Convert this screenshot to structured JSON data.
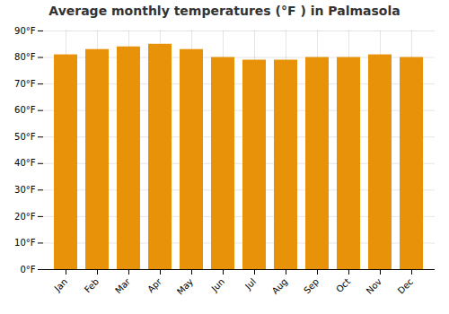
{
  "chart_data": {
    "type": "bar",
    "title": "Average monthly temperatures (°F ) in Palmasola",
    "categories": [
      "Jan",
      "Feb",
      "Mar",
      "Apr",
      "May",
      "Jun",
      "Jul",
      "Aug",
      "Sep",
      "Oct",
      "Nov",
      "Dec"
    ],
    "values": [
      81,
      83,
      84,
      85,
      83,
      80,
      79,
      79,
      80,
      80,
      81,
      80
    ],
    "color": "#E8920A",
    "ylim": [
      0,
      90
    ],
    "yticks": [
      {
        "value": 0,
        "label": "0°F"
      },
      {
        "value": 10,
        "label": "10°F"
      },
      {
        "value": 20,
        "label": "20°F"
      },
      {
        "value": 30,
        "label": "30°F"
      },
      {
        "value": 40,
        "label": "40°F"
      },
      {
        "value": 50,
        "label": "50°F"
      },
      {
        "value": 60,
        "label": "60°F"
      },
      {
        "value": 70,
        "label": "70°F"
      },
      {
        "value": 80,
        "label": "80°F"
      },
      {
        "value": 90,
        "label": "90°F"
      }
    ],
    "grid": true
  }
}
